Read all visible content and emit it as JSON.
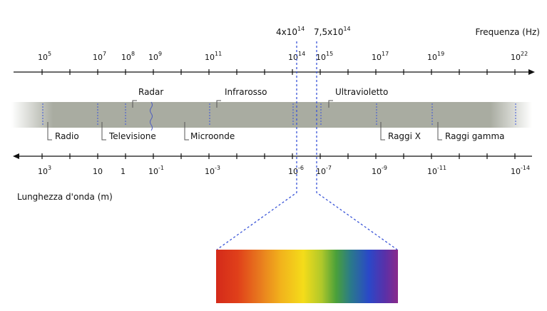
{
  "top_axis": {
    "label": "Frequenza (Hz)",
    "ticks": [
      {
        "base": "10",
        "exp": "5"
      },
      {
        "base": "10",
        "exp": "7"
      },
      {
        "base": "10",
        "exp": "8"
      },
      {
        "base": "10",
        "exp": "9"
      },
      {
        "base": "10",
        "exp": "11"
      },
      {
        "base": "10",
        "exp": "14"
      },
      {
        "base": "10",
        "exp": "15"
      },
      {
        "base": "10",
        "exp": "17"
      },
      {
        "base": "10",
        "exp": "19"
      },
      {
        "base": "10",
        "exp": "22"
      }
    ]
  },
  "visible_bounds": [
    {
      "mant": "4x10",
      "exp": "14"
    },
    {
      "mant": "7,5x10",
      "exp": "14"
    }
  ],
  "bands_upper": [
    "Radar",
    "Infrarosso",
    "Ultravioletto"
  ],
  "bands_lower": [
    "Radio",
    "Televisione",
    "Microonde",
    "Raggi X",
    "Raggi gamma"
  ],
  "bottom_axis": {
    "label": "Lunghezza d'onda (m)",
    "ticks": [
      {
        "base": "10",
        "exp": "3"
      },
      {
        "base": "10",
        "exp": ""
      },
      {
        "base": "1",
        "exp": ""
      },
      {
        "base": "10",
        "exp": "-1"
      },
      {
        "base": "10",
        "exp": "-3"
      },
      {
        "base": "10",
        "exp": "-6"
      },
      {
        "base": "10",
        "exp": "-7"
      },
      {
        "base": "10",
        "exp": "-9"
      },
      {
        "base": "10",
        "exp": "-11"
      },
      {
        "base": "10",
        "exp": "-14"
      }
    ]
  },
  "colors": {
    "band": "#a9aca1",
    "dashed": "#3a55d8",
    "axis": "#111111",
    "spectrum": [
      "#d42a1a",
      "#e4561c",
      "#ec8e1e",
      "#f4c51a",
      "#eee21e",
      "#5aa83a",
      "#2a8a6a",
      "#2a48c8",
      "#5a2aa0",
      "#8a2a8a"
    ]
  }
}
